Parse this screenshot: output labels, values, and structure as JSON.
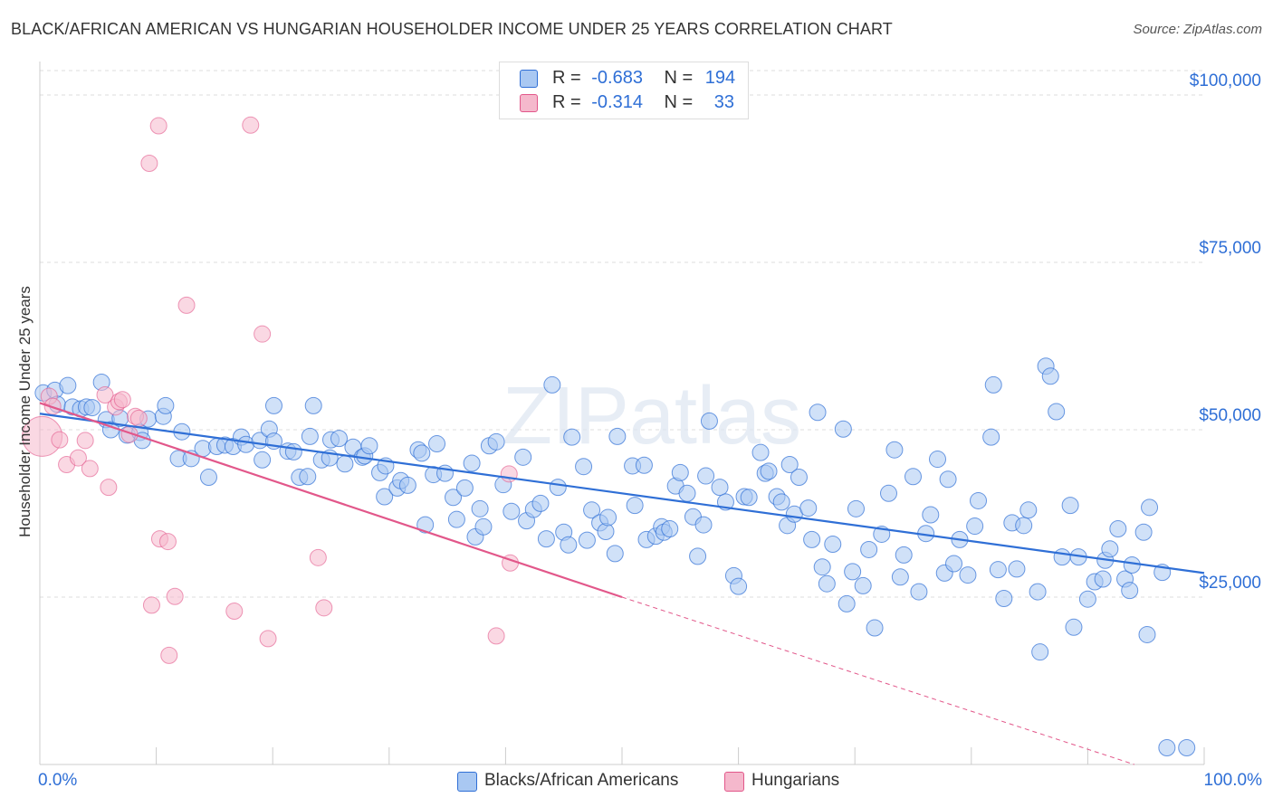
{
  "title": "BLACK/AFRICAN AMERICAN VS HUNGARIAN HOUSEHOLDER INCOME UNDER 25 YEARS CORRELATION CHART",
  "source": "Source: ZipAtlas.com",
  "watermark": "ZIPatlas",
  "legend": {
    "rows": [
      {
        "r_label": "R =",
        "r_value": "-0.683",
        "n_label": "N =",
        "n_value": "194",
        "color": "#a9c8f2"
      },
      {
        "r_label": "R =",
        "r_value": "-0.314",
        "n_label": "N =",
        "n_value": "33",
        "color": "#f5b8cc"
      }
    ]
  },
  "bottom_legend": [
    {
      "label": "Blacks/African Americans",
      "color": "#a9c8f2"
    },
    {
      "label": "Hungarians",
      "color": "#f5b8cc"
    }
  ],
  "x_tick_left": "0.0%",
  "x_tick_right": "100.0%",
  "colors": {
    "blue": "#2f6fd6",
    "blue_fill": "#a9c8f2",
    "pink": "#e2578a",
    "pink_fill": "#f5b8cc",
    "grid": "#dddddd",
    "tick_text": "#2f6fd6"
  },
  "chart_data": {
    "type": "scatter",
    "title": "BLACK/AFRICAN AMERICAN VS HUNGARIAN HOUSEHOLDER INCOME UNDER 25 YEARS CORRELATION CHART",
    "xlabel": "",
    "ylabel": "Householder Income Under 25 years",
    "xlim": [
      0,
      100
    ],
    "ylim": [
      0,
      105000
    ],
    "y_ticks": [
      25000,
      50000,
      75000,
      100000
    ],
    "y_tick_labels": [
      "$25,000",
      "$50,000",
      "$75,000",
      "$100,000"
    ],
    "x_tick_labels": [
      "0.0%",
      "100.0%"
    ],
    "grid": "horizontal dashed",
    "legend_placement": "top-center",
    "series": [
      {
        "name": "Blacks/African Americans",
        "color": "#2f6fd6",
        "trend": {
          "x": [
            0,
            100
          ],
          "y": [
            52400,
            28600
          ]
        },
        "points": [
          [
            0.3,
            55500
          ],
          [
            1.3,
            55900
          ],
          [
            2.4,
            56600
          ],
          [
            5.3,
            57100
          ],
          [
            1.5,
            53800
          ],
          [
            2.8,
            53400
          ],
          [
            3.5,
            53100
          ],
          [
            4.0,
            53400
          ],
          [
            4.5,
            53300
          ],
          [
            5.7,
            51500
          ],
          [
            6.1,
            50000
          ],
          [
            6.9,
            51700
          ],
          [
            7.5,
            49200
          ],
          [
            8.6,
            49600
          ],
          [
            8.8,
            48400
          ],
          [
            9.3,
            51600
          ],
          [
            10.6,
            52000
          ],
          [
            10.8,
            53600
          ],
          [
            12.2,
            49700
          ],
          [
            11.9,
            45700
          ],
          [
            13.0,
            45700
          ],
          [
            14.0,
            47200
          ],
          [
            14.5,
            42900
          ],
          [
            15.2,
            47500
          ],
          [
            15.9,
            47700
          ],
          [
            16.6,
            47500
          ],
          [
            17.3,
            48900
          ],
          [
            17.7,
            47800
          ],
          [
            18.9,
            48400
          ],
          [
            19.1,
            45500
          ],
          [
            19.7,
            50100
          ],
          [
            20.1,
            48300
          ],
          [
            20.1,
            53600
          ],
          [
            21.3,
            46800
          ],
          [
            21.8,
            46700
          ],
          [
            23.2,
            49000
          ],
          [
            22.3,
            42900
          ],
          [
            23.0,
            43000
          ],
          [
            23.5,
            53600
          ],
          [
            24.2,
            45500
          ],
          [
            24.9,
            45800
          ],
          [
            25.0,
            48500
          ],
          [
            25.7,
            48700
          ],
          [
            26.2,
            44900
          ],
          [
            26.9,
            47400
          ],
          [
            27.7,
            45900
          ],
          [
            27.9,
            46100
          ],
          [
            28.3,
            47600
          ],
          [
            29.2,
            43600
          ],
          [
            29.6,
            40000
          ],
          [
            29.7,
            44600
          ],
          [
            30.7,
            41300
          ],
          [
            31.0,
            42400
          ],
          [
            31.6,
            41700
          ],
          [
            32.5,
            47000
          ],
          [
            32.8,
            46500
          ],
          [
            33.1,
            35800
          ],
          [
            33.8,
            43300
          ],
          [
            34.1,
            47900
          ],
          [
            34.8,
            43500
          ],
          [
            35.5,
            39900
          ],
          [
            35.8,
            36600
          ],
          [
            36.5,
            41300
          ],
          [
            37.1,
            45000
          ],
          [
            37.4,
            34000
          ],
          [
            37.8,
            38200
          ],
          [
            38.1,
            35500
          ],
          [
            38.6,
            47600
          ],
          [
            39.2,
            48200
          ],
          [
            39.8,
            41800
          ],
          [
            40.5,
            37800
          ],
          [
            41.5,
            45900
          ],
          [
            41.8,
            36400
          ],
          [
            42.4,
            38100
          ],
          [
            43.0,
            39000
          ],
          [
            43.5,
            33700
          ],
          [
            44.0,
            56700
          ],
          [
            44.5,
            41400
          ],
          [
            45.0,
            34700
          ],
          [
            45.4,
            32800
          ],
          [
            45.7,
            48900
          ],
          [
            46.7,
            44500
          ],
          [
            47.0,
            33500
          ],
          [
            47.4,
            38000
          ],
          [
            48.1,
            36100
          ],
          [
            48.6,
            34800
          ],
          [
            48.8,
            36900
          ],
          [
            49.4,
            31500
          ],
          [
            49.6,
            49000
          ],
          [
            50.9,
            44600
          ],
          [
            51.1,
            38700
          ],
          [
            51.9,
            44700
          ],
          [
            52.1,
            33600
          ],
          [
            52.9,
            34100
          ],
          [
            53.4,
            35500
          ],
          [
            53.6,
            34700
          ],
          [
            54.1,
            35200
          ],
          [
            54.6,
            41600
          ],
          [
            55.0,
            43600
          ],
          [
            55.6,
            40500
          ],
          [
            56.1,
            37000
          ],
          [
            56.5,
            31100
          ],
          [
            57.0,
            35800
          ],
          [
            57.2,
            43100
          ],
          [
            57.5,
            51300
          ],
          [
            58.4,
            41400
          ],
          [
            58.9,
            39200
          ],
          [
            59.6,
            28200
          ],
          [
            60.0,
            26600
          ],
          [
            60.5,
            40000
          ],
          [
            60.9,
            39900
          ],
          [
            61.9,
            46600
          ],
          [
            62.3,
            43500
          ],
          [
            62.6,
            43800
          ],
          [
            63.3,
            40000
          ],
          [
            63.7,
            39200
          ],
          [
            64.2,
            35700
          ],
          [
            64.4,
            44800
          ],
          [
            64.8,
            37400
          ],
          [
            65.2,
            42900
          ],
          [
            66.0,
            38300
          ],
          [
            66.3,
            33600
          ],
          [
            66.8,
            52600
          ],
          [
            67.2,
            29500
          ],
          [
            67.6,
            27000
          ],
          [
            68.1,
            32900
          ],
          [
            69.0,
            50100
          ],
          [
            69.3,
            24000
          ],
          [
            69.8,
            28800
          ],
          [
            70.1,
            38200
          ],
          [
            70.7,
            26700
          ],
          [
            71.2,
            32100
          ],
          [
            71.7,
            20400
          ],
          [
            72.3,
            34400
          ],
          [
            72.9,
            40500
          ],
          [
            73.4,
            47000
          ],
          [
            73.9,
            28000
          ],
          [
            74.2,
            31300
          ],
          [
            75.0,
            43000
          ],
          [
            75.5,
            25800
          ],
          [
            76.1,
            34500
          ],
          [
            76.5,
            37300
          ],
          [
            77.1,
            45600
          ],
          [
            77.7,
            28600
          ],
          [
            78.0,
            42600
          ],
          [
            78.5,
            30000
          ],
          [
            79.0,
            33600
          ],
          [
            79.7,
            28300
          ],
          [
            80.3,
            35600
          ],
          [
            80.6,
            39400
          ],
          [
            81.7,
            48900
          ],
          [
            81.9,
            56700
          ],
          [
            82.3,
            29100
          ],
          [
            82.8,
            24800
          ],
          [
            83.5,
            36100
          ],
          [
            83.9,
            29200
          ],
          [
            84.5,
            35700
          ],
          [
            84.9,
            38000
          ],
          [
            85.7,
            25800
          ],
          [
            85.9,
            16800
          ],
          [
            86.4,
            59500
          ],
          [
            86.8,
            58000
          ],
          [
            87.3,
            52700
          ],
          [
            87.8,
            31000
          ],
          [
            88.5,
            38700
          ],
          [
            88.8,
            20500
          ],
          [
            89.2,
            31000
          ],
          [
            90.0,
            24700
          ],
          [
            90.6,
            27300
          ],
          [
            91.3,
            27700
          ],
          [
            91.5,
            30500
          ],
          [
            91.9,
            32200
          ],
          [
            92.6,
            35200
          ],
          [
            93.2,
            27700
          ],
          [
            93.6,
            26000
          ],
          [
            93.8,
            29800
          ],
          [
            94.8,
            34700
          ],
          [
            95.1,
            19400
          ],
          [
            95.3,
            38400
          ],
          [
            96.4,
            28700
          ],
          [
            96.8,
            2500
          ],
          [
            98.5,
            2500
          ]
        ]
      },
      {
        "name": "Hungarians",
        "color": "#e2578a",
        "trend": {
          "x": [
            0,
            50
          ],
          "y": [
            54000,
            25000
          ]
        },
        "trend_dashed_to": {
          "x": 94,
          "y": 0
        },
        "points": [
          [
            0.2,
            49000
          ],
          [
            0.8,
            55000
          ],
          [
            1.1,
            53500
          ],
          [
            1.7,
            48500
          ],
          [
            2.3,
            44800
          ],
          [
            3.3,
            45800
          ],
          [
            3.9,
            48400
          ],
          [
            4.3,
            44200
          ],
          [
            5.6,
            55200
          ],
          [
            5.9,
            41400
          ],
          [
            6.5,
            53400
          ],
          [
            6.8,
            54200
          ],
          [
            7.1,
            54500
          ],
          [
            7.7,
            49300
          ],
          [
            8.2,
            52000
          ],
          [
            8.5,
            51700
          ],
          [
            9.4,
            89800
          ],
          [
            9.6,
            23800
          ],
          [
            10.3,
            33700
          ],
          [
            10.2,
            95400
          ],
          [
            11.0,
            33300
          ],
          [
            11.1,
            16300
          ],
          [
            11.6,
            25100
          ],
          [
            12.6,
            68600
          ],
          [
            16.7,
            22900
          ],
          [
            18.1,
            95500
          ],
          [
            19.1,
            64300
          ],
          [
            19.6,
            18800
          ],
          [
            23.9,
            30900
          ],
          [
            24.4,
            23400
          ],
          [
            40.3,
            43400
          ],
          [
            40.4,
            30100
          ],
          [
            39.2,
            19200
          ]
        ]
      }
    ]
  }
}
